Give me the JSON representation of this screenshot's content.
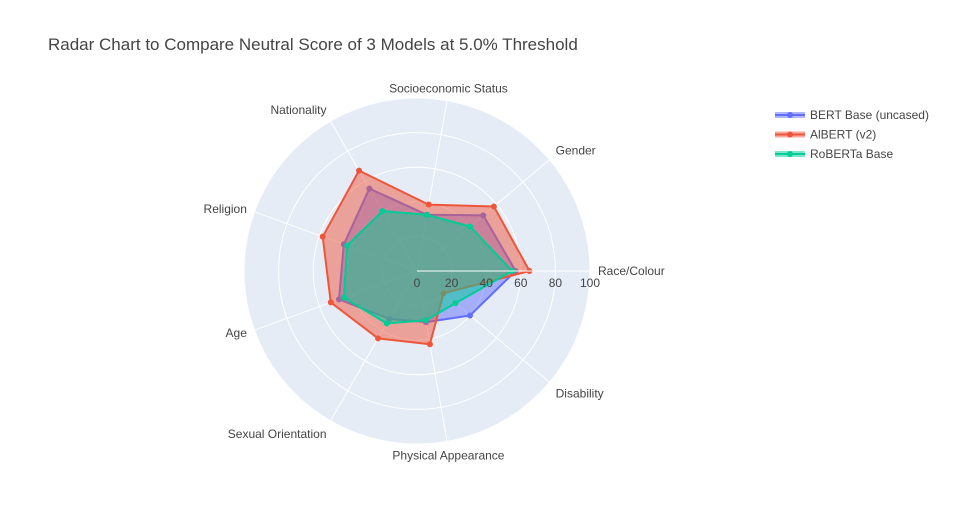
{
  "chart_data": {
    "type": "radar",
    "title": "Radar Chart to Compare Neutral Score of 3 Models at 5.0% Threshold",
    "categories": [
      "Race/Colour",
      "Gender",
      "Socioeconomic Status",
      "Nationality",
      "Religion",
      "Age",
      "Sexual Orientation",
      "Physical Appearance",
      "Disability"
    ],
    "radial_range": [
      0,
      100
    ],
    "radial_ticks": [
      "0",
      "20",
      "40",
      "60",
      "80",
      "100"
    ],
    "radial_tick_values": [
      0,
      20,
      40,
      60,
      80,
      100
    ],
    "grid": true,
    "legend_position": "top-right",
    "series": [
      {
        "name": "BERT Base (uncased)",
        "color": "#636efa",
        "values": [
          57,
          50,
          33,
          55,
          45,
          48,
          32,
          30,
          40
        ]
      },
      {
        "name": "AlBERT (v2)",
        "color": "#ef553b",
        "values": [
          65,
          58,
          39,
          67,
          58,
          53,
          45,
          43,
          20
        ]
      },
      {
        "name": "RoBERTa Base",
        "color": "#00cc96",
        "values": [
          55,
          40,
          33,
          40,
          43,
          45,
          35,
          29,
          29
        ]
      }
    ]
  }
}
